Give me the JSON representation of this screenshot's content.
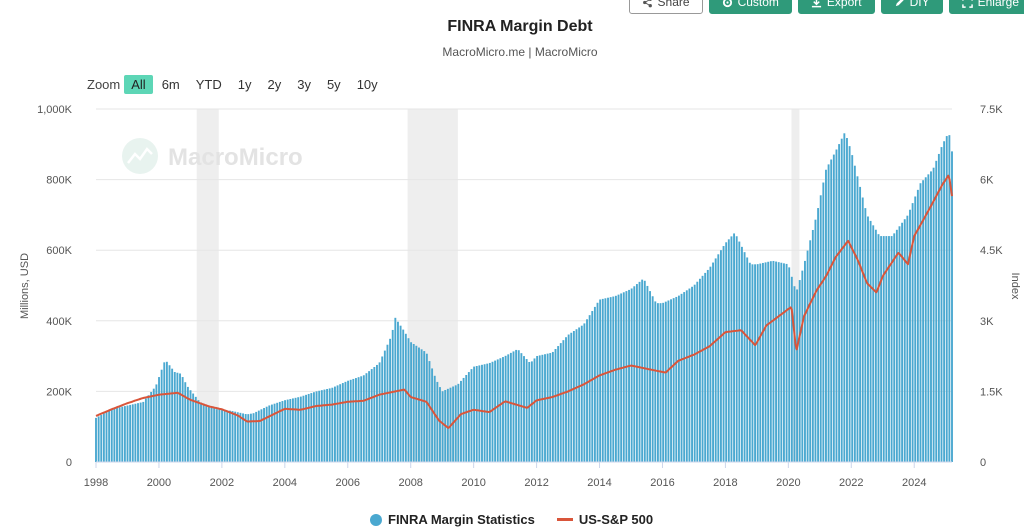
{
  "toolbar": {
    "share_label": "Share",
    "custom_label": "Custom",
    "export_label": "Export",
    "diy_label": "DIY",
    "enlarge_label": "Enlarge"
  },
  "range_selector": {
    "zoom_label": "Zoom",
    "buttons": [
      "All",
      "6m",
      "YTD",
      "1y",
      "2y",
      "3y",
      "5y",
      "10y"
    ],
    "active": "All",
    "active_color": "#5dd6b6"
  },
  "watermark_text": "MacroMicro",
  "chart_data": {
    "type": "bar",
    "title": "FINRA Margin Debt",
    "subtitle": "MacroMicro.me | MacroMicro",
    "y_left_label": "Millions, USD",
    "y_right_label": "Index",
    "y_left_ticks": [
      "0",
      "200K",
      "400K",
      "600K",
      "800K",
      "1,000K"
    ],
    "y_left_range": [
      0,
      1000000
    ],
    "y_right_ticks": [
      "0",
      "1.5K",
      "3K",
      "4.5K",
      "6K",
      "7.5K"
    ],
    "y_right_range": [
      0,
      7500
    ],
    "x_ticks": [
      "1998",
      "2000",
      "2002",
      "2004",
      "2006",
      "2008",
      "2010",
      "2012",
      "2014",
      "2016",
      "2018",
      "2020",
      "2022",
      "2024"
    ],
    "x_range": [
      1998,
      2025.2
    ],
    "grid": "horizontal",
    "recession_shading": [
      [
        2001.2,
        2001.9
      ],
      [
        2007.9,
        2009.5
      ],
      [
        2020.1,
        2020.35
      ]
    ],
    "series": [
      {
        "name": "FINRA Margin Statistics",
        "type": "bar",
        "color": "#4aa8d0",
        "axis": "left",
        "points": [
          [
            1998.0,
            125000
          ],
          [
            1998.5,
            150000
          ],
          [
            1999.0,
            160000
          ],
          [
            1999.5,
            170000
          ],
          [
            1999.9,
            215000
          ],
          [
            2000.1,
            265000
          ],
          [
            2000.2,
            290000
          ],
          [
            2000.5,
            255000
          ],
          [
            2000.7,
            250000
          ],
          [
            2000.9,
            215000
          ],
          [
            2001.3,
            170000
          ],
          [
            2001.8,
            150000
          ],
          [
            2002.3,
            145000
          ],
          [
            2002.8,
            135000
          ],
          [
            2003.0,
            138000
          ],
          [
            2003.5,
            160000
          ],
          [
            2004.0,
            175000
          ],
          [
            2004.5,
            185000
          ],
          [
            2005.0,
            200000
          ],
          [
            2005.5,
            210000
          ],
          [
            2006.0,
            230000
          ],
          [
            2006.5,
            245000
          ],
          [
            2007.0,
            280000
          ],
          [
            2007.4,
            360000
          ],
          [
            2007.5,
            410000
          ],
          [
            2007.8,
            370000
          ],
          [
            2008.0,
            340000
          ],
          [
            2008.5,
            310000
          ],
          [
            2008.8,
            235000
          ],
          [
            2009.0,
            200000
          ],
          [
            2009.5,
            220000
          ],
          [
            2010.0,
            270000
          ],
          [
            2010.5,
            280000
          ],
          [
            2011.0,
            300000
          ],
          [
            2011.4,
            320000
          ],
          [
            2011.8,
            280000
          ],
          [
            2012.0,
            300000
          ],
          [
            2012.5,
            310000
          ],
          [
            2013.0,
            360000
          ],
          [
            2013.5,
            390000
          ],
          [
            2014.0,
            460000
          ],
          [
            2014.5,
            470000
          ],
          [
            2015.0,
            490000
          ],
          [
            2015.4,
            520000
          ],
          [
            2015.8,
            450000
          ],
          [
            2016.0,
            450000
          ],
          [
            2016.5,
            470000
          ],
          [
            2017.0,
            500000
          ],
          [
            2017.5,
            550000
          ],
          [
            2018.0,
            620000
          ],
          [
            2018.3,
            650000
          ],
          [
            2018.8,
            560000
          ],
          [
            2019.0,
            560000
          ],
          [
            2019.5,
            570000
          ],
          [
            2020.0,
            560000
          ],
          [
            2020.25,
            480000
          ],
          [
            2020.5,
            560000
          ],
          [
            2020.9,
            700000
          ],
          [
            2021.2,
            830000
          ],
          [
            2021.5,
            880000
          ],
          [
            2021.8,
            935000
          ],
          [
            2022.0,
            880000
          ],
          [
            2022.5,
            700000
          ],
          [
            2022.9,
            640000
          ],
          [
            2023.3,
            640000
          ],
          [
            2023.8,
            700000
          ],
          [
            2024.2,
            790000
          ],
          [
            2024.6,
            830000
          ],
          [
            2024.9,
            900000
          ],
          [
            2025.1,
            935000
          ],
          [
            2025.2,
            880000
          ]
        ]
      },
      {
        "name": "US-S&P 500",
        "type": "line",
        "color": "#d9553a",
        "axis": "right",
        "points": [
          [
            1998.0,
            980
          ],
          [
            1998.5,
            1120
          ],
          [
            1999.0,
            1250
          ],
          [
            1999.5,
            1360
          ],
          [
            2000.0,
            1430
          ],
          [
            2000.6,
            1470
          ],
          [
            2001.0,
            1320
          ],
          [
            2001.6,
            1180
          ],
          [
            2002.0,
            1120
          ],
          [
            2002.5,
            990
          ],
          [
            2002.8,
            860
          ],
          [
            2003.2,
            870
          ],
          [
            2003.6,
            1000
          ],
          [
            2004.0,
            1130
          ],
          [
            2004.5,
            1110
          ],
          [
            2005.0,
            1190
          ],
          [
            2005.5,
            1220
          ],
          [
            2006.0,
            1280
          ],
          [
            2006.5,
            1300
          ],
          [
            2007.0,
            1430
          ],
          [
            2007.8,
            1540
          ],
          [
            2008.0,
            1380
          ],
          [
            2008.5,
            1280
          ],
          [
            2008.9,
            880
          ],
          [
            2009.2,
            720
          ],
          [
            2009.6,
            1020
          ],
          [
            2010.0,
            1110
          ],
          [
            2010.5,
            1060
          ],
          [
            2011.0,
            1290
          ],
          [
            2011.7,
            1150
          ],
          [
            2012.0,
            1310
          ],
          [
            2012.5,
            1380
          ],
          [
            2013.0,
            1500
          ],
          [
            2013.5,
            1650
          ],
          [
            2014.0,
            1840
          ],
          [
            2014.5,
            1960
          ],
          [
            2015.0,
            2050
          ],
          [
            2015.8,
            1940
          ],
          [
            2016.1,
            1900
          ],
          [
            2016.5,
            2150
          ],
          [
            2017.0,
            2280
          ],
          [
            2017.5,
            2460
          ],
          [
            2018.0,
            2760
          ],
          [
            2018.5,
            2800
          ],
          [
            2018.95,
            2480
          ],
          [
            2019.3,
            2900
          ],
          [
            2019.9,
            3200
          ],
          [
            2020.1,
            3300
          ],
          [
            2020.25,
            2350
          ],
          [
            2020.5,
            3100
          ],
          [
            2020.9,
            3650
          ],
          [
            2021.2,
            3950
          ],
          [
            2021.5,
            4350
          ],
          [
            2021.9,
            4700
          ],
          [
            2022.2,
            4300
          ],
          [
            2022.5,
            3800
          ],
          [
            2022.8,
            3600
          ],
          [
            2023.0,
            3950
          ],
          [
            2023.5,
            4450
          ],
          [
            2023.8,
            4200
          ],
          [
            2024.0,
            4800
          ],
          [
            2024.5,
            5400
          ],
          [
            2024.9,
            5900
          ],
          [
            2025.1,
            6100
          ],
          [
            2025.2,
            5650
          ]
        ]
      }
    ],
    "legend": [
      "FINRA Margin Statistics",
      "US-S&P 500"
    ],
    "legend_position": "bottom"
  }
}
